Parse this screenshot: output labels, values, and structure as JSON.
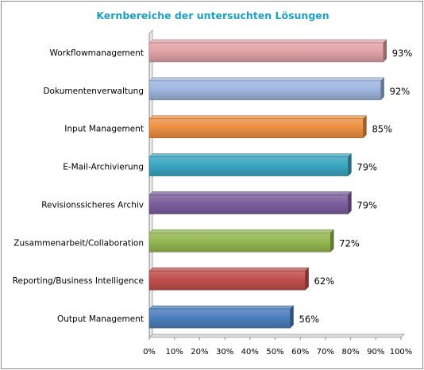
{
  "chart_data": {
    "type": "bar",
    "orientation": "horizontal",
    "title": "Kernbereiche der untersuchten Lösungen",
    "categories": [
      "Workflowmanagement",
      "Dokumentenverwaltung",
      "Input Management",
      "E-Mail-Archivierung",
      "Revisionssicheres Archiv",
      "Zusammenarbeit/Collaboration",
      "Reporting/Business Intelligence",
      "Output Management"
    ],
    "values": [
      93,
      92,
      85,
      79,
      79,
      72,
      62,
      56
    ],
    "value_labels": [
      "93%",
      "92%",
      "85%",
      "79%",
      "79%",
      "72%",
      "62%",
      "56%"
    ],
    "bar_colors": [
      "#e3a3a8",
      "#9fb6df",
      "#ee9043",
      "#3aa6c1",
      "#7d5e9e",
      "#95b852",
      "#c0504d",
      "#4c7fbd"
    ],
    "x_ticks": [
      "0%",
      "10%",
      "20%",
      "30%",
      "40%",
      "50%",
      "60%",
      "70%",
      "80%",
      "90%",
      "100%"
    ],
    "xlim": [
      0,
      100
    ],
    "xlabel": "",
    "ylabel": "",
    "grid": false,
    "legend": "none"
  }
}
